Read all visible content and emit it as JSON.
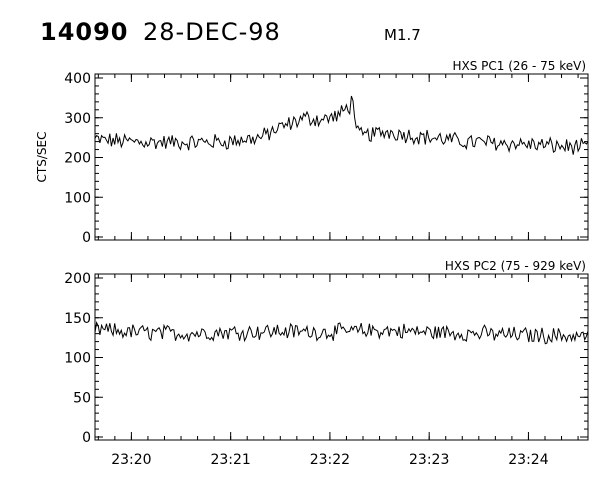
{
  "header": {
    "event_id": "14090",
    "date": "28-DEC-98",
    "flare_class": "M1.7"
  },
  "chart_data": [
    {
      "type": "line",
      "title": "HXS PC1 (26 - 75 keV)",
      "ylabel": "CTS/SEC",
      "ylim": [
        0,
        400
      ],
      "yticks": [
        0,
        100,
        200,
        300,
        400
      ],
      "xlim": [
        "23:19:38",
        "23:24:36"
      ],
      "xticks": [
        "23:20",
        "23:21",
        "23:22",
        "23:23",
        "23:24"
      ],
      "series": [
        {
          "x": [
            "23:19:38",
            "23:19:58",
            "23:20:18",
            "23:20:38",
            "23:20:58",
            "23:21:18",
            "23:21:30",
            "23:21:45",
            "23:21:55",
            "23:22:05",
            "23:22:12",
            "23:22:14",
            "23:22:16",
            "23:22:20",
            "23:22:35",
            "23:22:50",
            "23:23:05",
            "23:23:20",
            "23:23:35",
            "23:23:50",
            "23:24:05",
            "23:24:20",
            "23:24:36"
          ],
          "y": [
            245,
            240,
            238,
            238,
            240,
            250,
            275,
            300,
            295,
            305,
            330,
            355,
            260,
            255,
            265,
            255,
            248,
            240,
            238,
            235,
            232,
            228,
            225
          ]
        }
      ]
    },
    {
      "type": "line",
      "title": "HXS PC2 (75 - 929 keV)",
      "ylim": [
        0,
        200
      ],
      "yticks": [
        0,
        50,
        100,
        150,
        200
      ],
      "xlim": [
        "23:19:38",
        "23:24:36"
      ],
      "xticks": [
        "23:20",
        "23:21",
        "23:22",
        "23:23",
        "23:24"
      ],
      "series": [
        {
          "x": [
            "23:19:38",
            "23:20:00",
            "23:20:30",
            "23:21:00",
            "23:21:30",
            "23:22:00",
            "23:22:30",
            "23:23:00",
            "23:23:30",
            "23:24:00",
            "23:24:36"
          ],
          "y": [
            135,
            132,
            130,
            132,
            133,
            132,
            134,
            132,
            130,
            128,
            127
          ]
        }
      ]
    }
  ]
}
